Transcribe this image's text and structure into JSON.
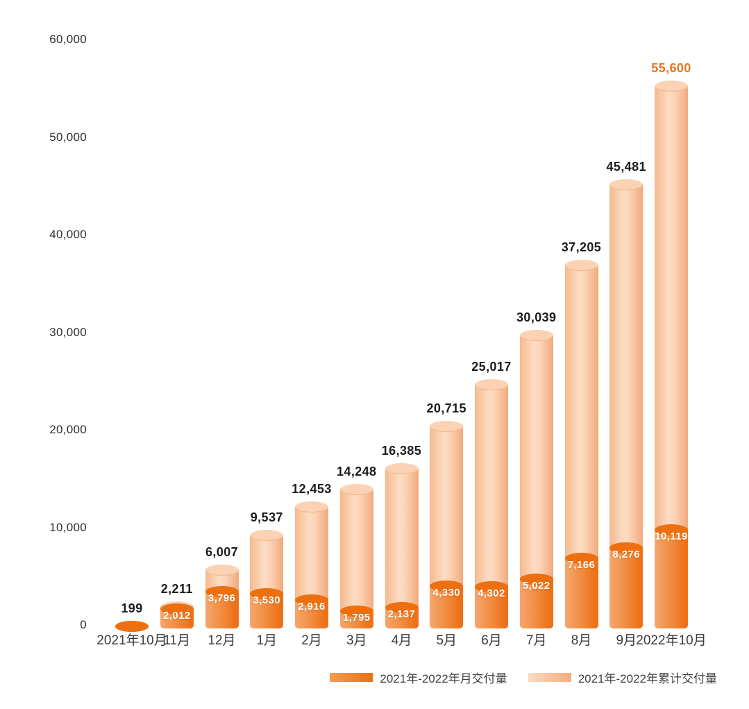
{
  "chart_data": {
    "type": "bar",
    "title": "",
    "xlabel": "",
    "ylabel": "",
    "categories": [
      "2021年10月",
      "11月",
      "12月",
      "1月",
      "2月",
      "3月",
      "4月",
      "5月",
      "6月",
      "7月",
      "8月",
      "9月",
      "2022年10月"
    ],
    "series": [
      {
        "name": "2021年-2022年月交付量",
        "values": [
          199,
          2012,
          3796,
          3530,
          2916,
          1795,
          2137,
          4330,
          4302,
          5022,
          7166,
          8276,
          10119
        ]
      },
      {
        "name": "2021年-2022年累计交付量",
        "values": [
          199,
          2211,
          6007,
          9537,
          12453,
          14248,
          16385,
          20715,
          25017,
          30039,
          37205,
          45481,
          55600
        ]
      }
    ],
    "value_labels": {
      "cumulative": [
        "199",
        "2,211",
        "6,007",
        "9,537",
        "12,453",
        "14,248",
        "16,385",
        "20,715",
        "25,017",
        "30,039",
        "37,205",
        "45,481",
        "55,600"
      ],
      "monthly": [
        "",
        "2,012",
        "3,796",
        "3,530",
        "2,916",
        "1,795",
        "2,137",
        "4,330",
        "4,302",
        "5,022",
        "7,166",
        "8,276",
        "10,119"
      ]
    },
    "y_ticks": [
      "60,000",
      "50,000",
      "40,000",
      "30,000",
      "20,000",
      "10,000",
      "0"
    ],
    "ylim": [
      0,
      60000
    ],
    "grid": false,
    "legend_position": "bottom-right",
    "colors": {
      "monthly_bar_start": "#f5a76e",
      "monthly_bar_end": "#ee7118",
      "monthly_cap": "#ec700f",
      "cumulative_bar_start": "#f6b98c",
      "cumulative_bar_mid": "#fcdcc3",
      "cumulative_bar_end": "#f2a97c",
      "cumulative_cap": "#fbd2b3",
      "cumulative_label": "#1c1c1c",
      "last_cumulative_label": "#e87722",
      "monthly_label": "#ffffff",
      "axis_text": "#2f2f2f"
    }
  }
}
